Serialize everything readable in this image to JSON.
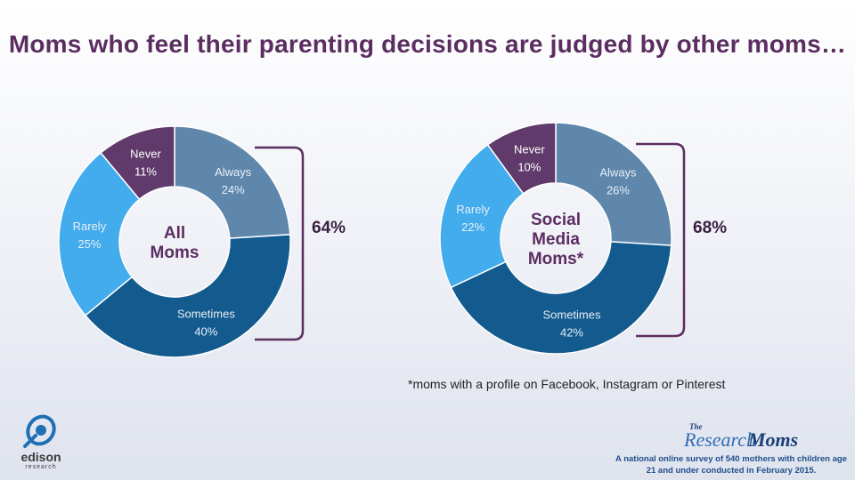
{
  "title": "Moms who feel their parenting decisions are judged by other moms…",
  "colors": {
    "always": "#5f87ac",
    "sometimes": "#135a8e",
    "rarely": "#42acec",
    "never": "#5f3a6b",
    "bracket": "#5b2d61",
    "title": "#5b2d61"
  },
  "chart_data": [
    {
      "type": "pie",
      "center_label": "All\nMoms",
      "slices": [
        {
          "label": "Always",
          "value": 24,
          "value_label": "24%",
          "color": "#5f87ac"
        },
        {
          "label": "Sometimes",
          "value": 40,
          "value_label": "40%",
          "color": "#135a8e"
        },
        {
          "label": "Rarely",
          "value": 25,
          "value_label": "25%",
          "color": "#42acec"
        },
        {
          "label": "Never",
          "value": 11,
          "value_label": "11%",
          "color": "#5f3a6b"
        }
      ],
      "bracket_label": "64%"
    },
    {
      "type": "pie",
      "center_label": "Social\nMedia\nMoms*",
      "slices": [
        {
          "label": "Always",
          "value": 26,
          "value_label": "26%",
          "color": "#5f87ac"
        },
        {
          "label": "Sometimes",
          "value": 42,
          "value_label": "42%",
          "color": "#135a8e"
        },
        {
          "label": "Rarely",
          "value": 22,
          "value_label": "22%",
          "color": "#42acec"
        },
        {
          "label": "Never",
          "value": 10,
          "value_label": "10%",
          "color": "#5f3a6b"
        }
      ],
      "bracket_label": "68%"
    }
  ],
  "footnote": "*moms with a profile on Facebook, Instagram or Pinterest",
  "survey_note": "A national online survey of 540 mothers with children age 21 and under conducted in February 2015.",
  "brand": {
    "the": "The",
    "word_a": "Research",
    "word_b": "Moms"
  },
  "edison": {
    "word": "edison",
    "sub": "research"
  }
}
